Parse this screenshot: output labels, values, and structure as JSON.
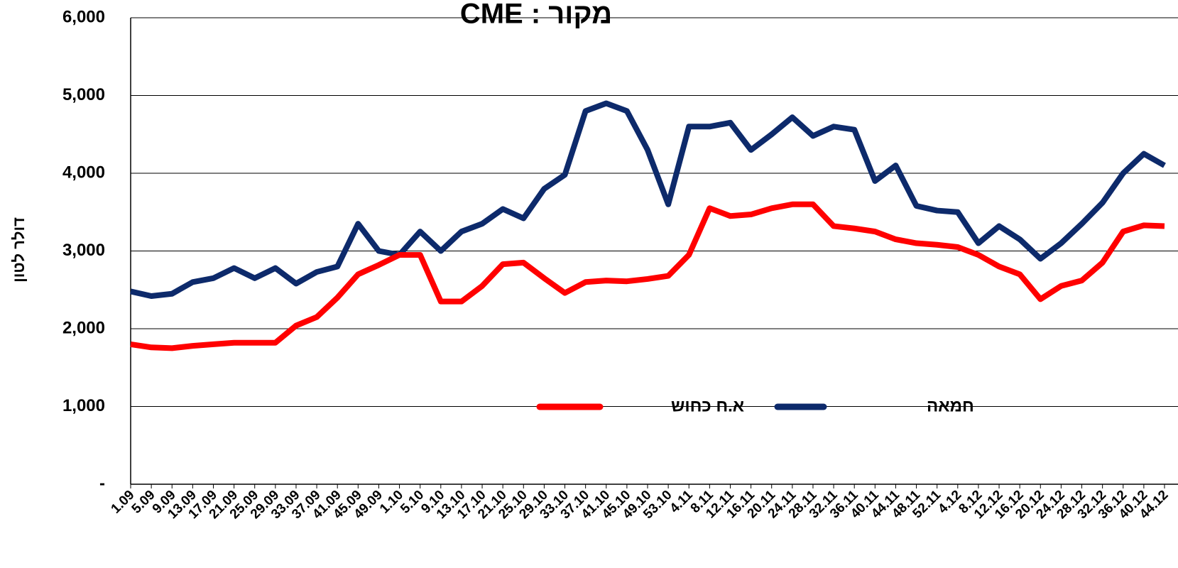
{
  "chart_data": {
    "type": "line",
    "title": "מקור : CME",
    "y_label": "דולר לטון",
    "categories": [
      "1.09",
      "5.09",
      "9.09",
      "13.09",
      "17.09",
      "21.09",
      "25.09",
      "29.09",
      "33.09",
      "37.09",
      "41.09",
      "45.09",
      "49.09",
      "1.10",
      "5.10",
      "9.10",
      "13.10",
      "17.10",
      "21.10",
      "25.10",
      "29.10",
      "33.10",
      "37.10",
      "41.10",
      "45.10",
      "49.10",
      "53.10",
      "4.11",
      "8.11",
      "12.11",
      "16.11",
      "20.11",
      "24.11",
      "28.11",
      "32.11",
      "36.11",
      "40.11",
      "44.11",
      "48.11",
      "52.11",
      "4.12",
      "8.12",
      "12.12",
      "16.12",
      "20.12",
      "24.12",
      "28.12",
      "32.12",
      "36.12",
      "40.12",
      "44.12"
    ],
    "series": [
      {
        "name": "חמאה",
        "color": "#0d2a6b",
        "values": [
          2480,
          2420,
          2450,
          2600,
          2650,
          2780,
          2650,
          2780,
          2580,
          2730,
          2800,
          3350,
          3000,
          2950,
          3250,
          3000,
          3250,
          3350,
          3540,
          3420,
          3800,
          3980,
          4800,
          4900,
          4800,
          4300,
          3600,
          4600,
          4600,
          4650,
          4300,
          4500,
          4720,
          4480,
          4600,
          4560,
          3900,
          4100,
          3580,
          3520,
          3500,
          3100,
          3320,
          3150,
          2900,
          3100,
          3350,
          3620,
          4000,
          4250,
          4100
        ]
      },
      {
        "name": "א.ח כחוש",
        "color": "#ff0000",
        "values": [
          1800,
          1760,
          1750,
          1780,
          1800,
          1820,
          1820,
          1820,
          2040,
          2150,
          2400,
          2700,
          2820,
          2950,
          2950,
          2350,
          2350,
          2550,
          2830,
          2850,
          2650,
          2460,
          2600,
          2620,
          2610,
          2640,
          2680,
          2950,
          3550,
          3450,
          3470,
          3550,
          3600,
          3600,
          3320,
          3290,
          3250,
          3150,
          3100,
          3080,
          3050,
          2950,
          2800,
          2700,
          2380,
          2550,
          2620,
          2850,
          3250,
          3330,
          3320
        ]
      }
    ],
    "ylim": [
      0,
      6000
    ],
    "yticks": [
      {
        "value": 0,
        "label": "-"
      },
      {
        "value": 1000,
        "label": "1,000"
      },
      {
        "value": 2000,
        "label": "2,000"
      },
      {
        "value": 3000,
        "label": "3,000"
      },
      {
        "value": 4000,
        "label": "4,000"
      },
      {
        "value": 5000,
        "label": "5,000"
      },
      {
        "value": 6000,
        "label": "6,000"
      }
    ],
    "grid": true
  }
}
